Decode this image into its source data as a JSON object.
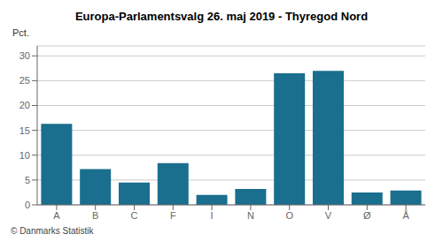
{
  "chart_data": {
    "type": "bar",
    "title": "Europa-Parlamentsvalg 26. maj 2019 - Thyregod Nord",
    "ylabel": "Pct.",
    "annotations": [
      "© Danmarks Statistik"
    ],
    "categories": [
      "A",
      "B",
      "C",
      "F",
      "I",
      "N",
      "O",
      "V",
      "Ø",
      "Å"
    ],
    "values": [
      16.3,
      7.2,
      4.5,
      8.4,
      2.0,
      3.2,
      26.5,
      27.0,
      2.5,
      2.9
    ],
    "color": "#1a6e8e",
    "ylim": [
      0,
      32
    ],
    "yticks": [
      0,
      5,
      10,
      15,
      20,
      25,
      30
    ],
    "grid": true
  }
}
